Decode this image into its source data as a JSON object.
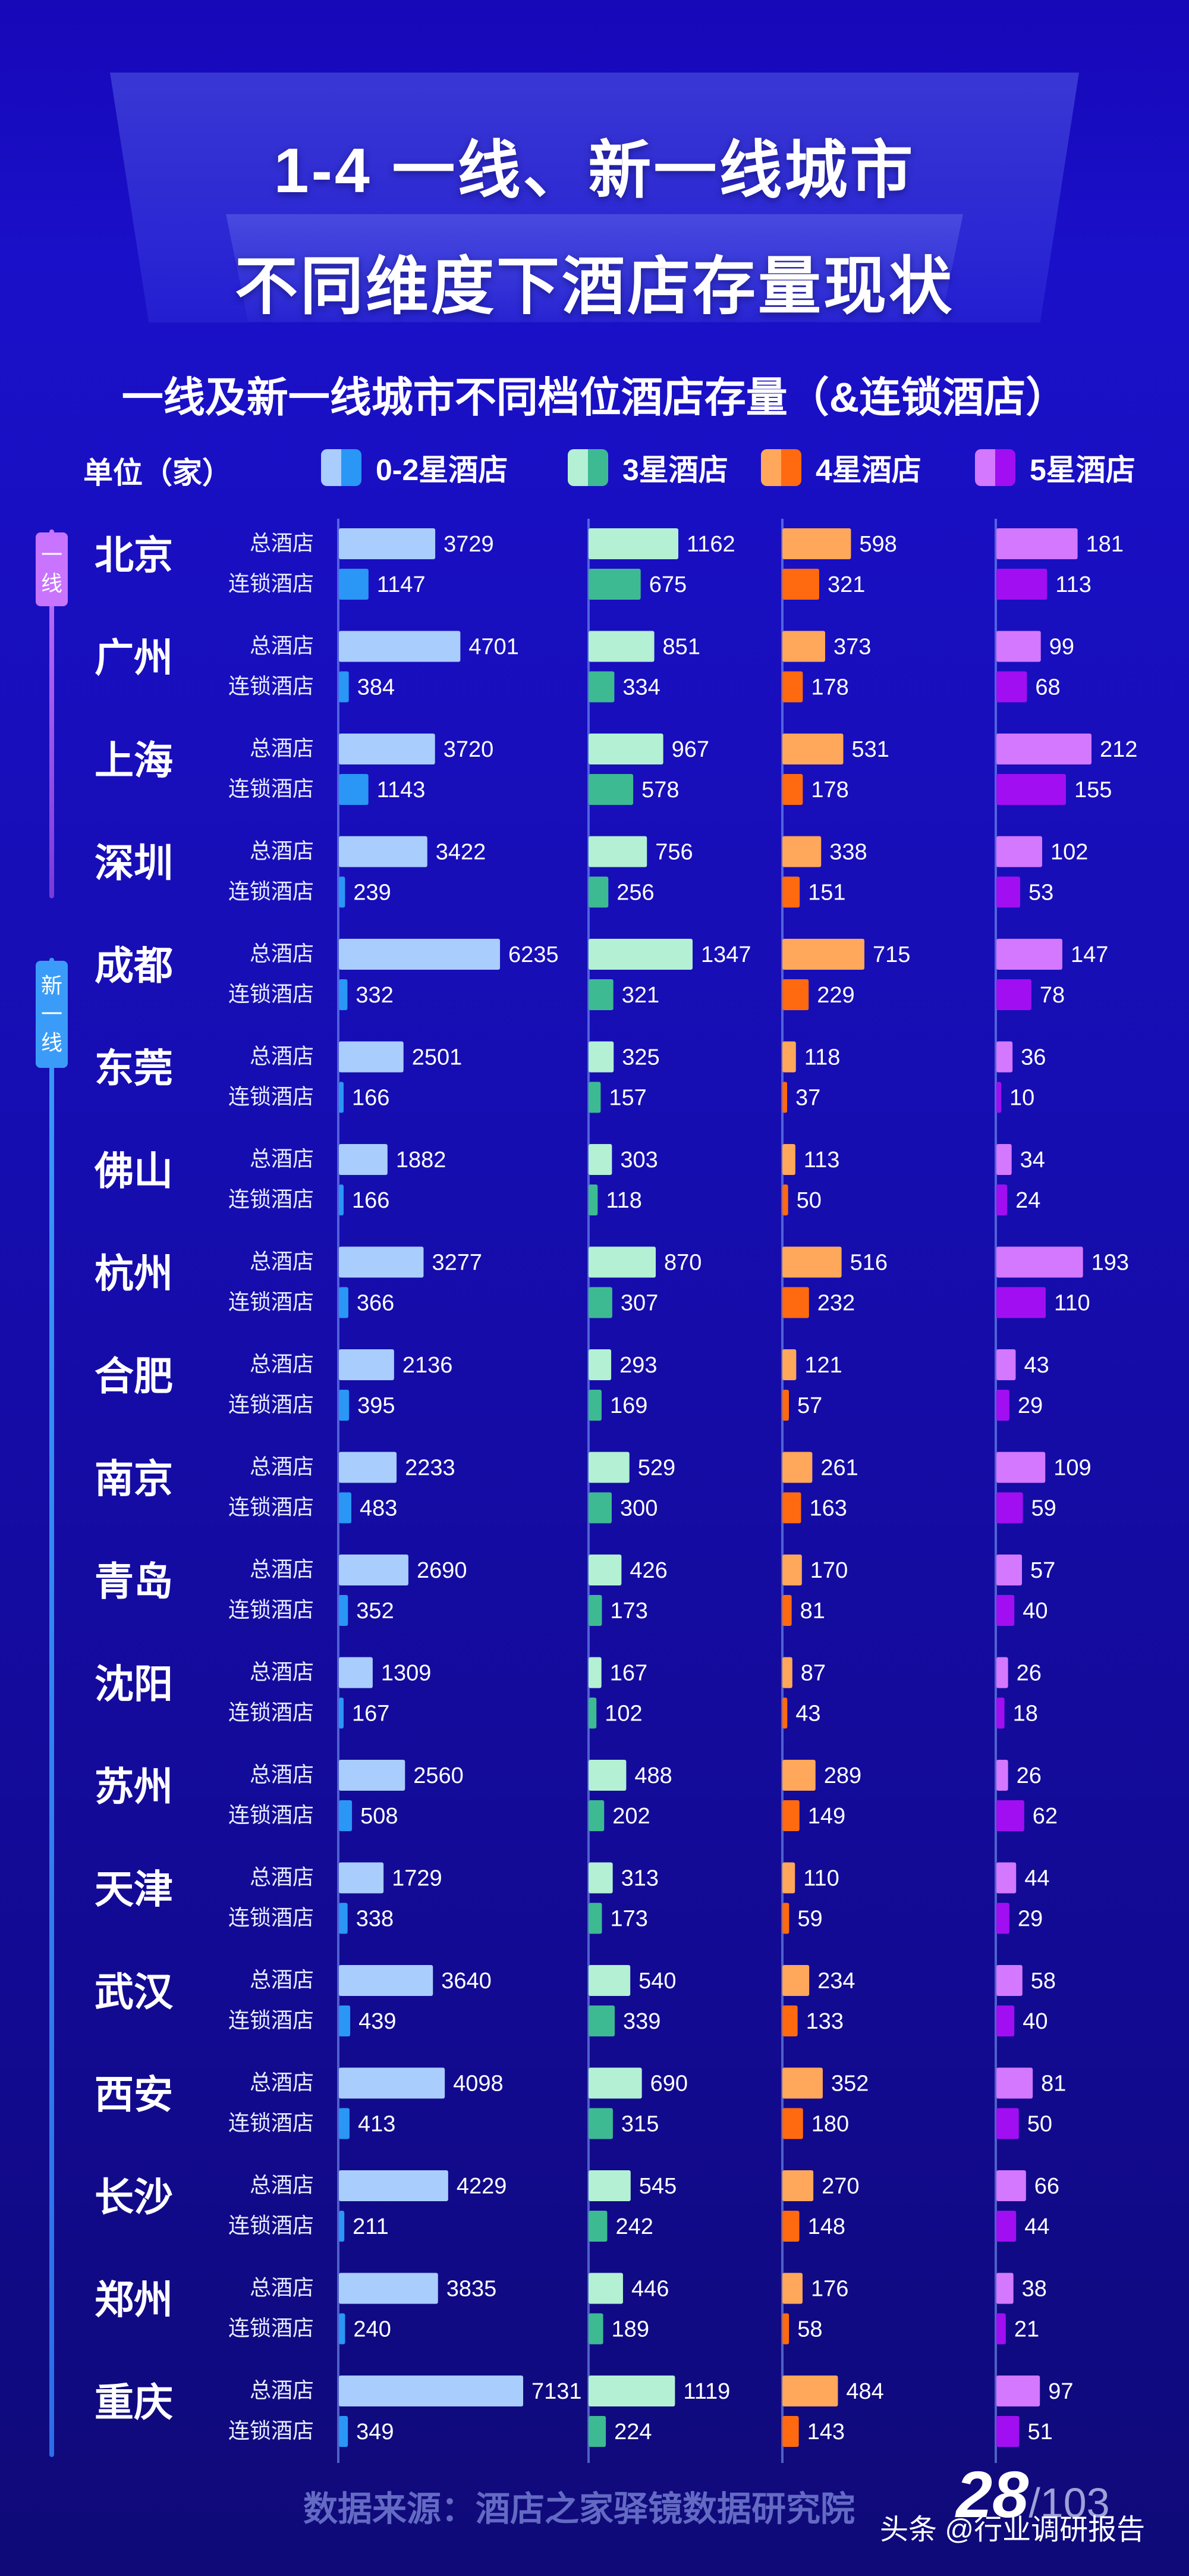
{
  "title": {
    "line1": "1-4 一线、新一线城市",
    "line2": "不同维度下酒店存量现状"
  },
  "chart_data": {
    "type": "bar",
    "title": "一线及新一线城市不同档位酒店存量（&连锁酒店）",
    "unit": "单位（家）",
    "row_labels": [
      "总酒店",
      "连锁酒店"
    ],
    "categories": [
      "北京",
      "广州",
      "上海",
      "深圳",
      "成都",
      "东莞",
      "佛山",
      "杭州",
      "合肥",
      "南京",
      "青岛",
      "沈阳",
      "苏州",
      "天津",
      "武汉",
      "西安",
      "长沙",
      "郑州",
      "重庆"
    ],
    "series": [
      {
        "name": "0-2星酒店",
        "colors": [
          "#a9cdfc",
          "#2a96f5"
        ],
        "scale_max": 7131,
        "total": [
          3729,
          4701,
          3720,
          3422,
          6235,
          2501,
          1882,
          3277,
          2136,
          2233,
          2690,
          1309,
          2560,
          1729,
          3640,
          4098,
          4229,
          3835,
          7131
        ],
        "chain": [
          1147,
          384,
          1143,
          239,
          332,
          166,
          166,
          366,
          395,
          483,
          352,
          167,
          508,
          338,
          439,
          413,
          211,
          240,
          349
        ]
      },
      {
        "name": "3星酒店",
        "colors": [
          "#b3f0d4",
          "#3dba92"
        ],
        "scale_max": 1347,
        "total": [
          1162,
          851,
          967,
          756,
          1347,
          325,
          303,
          870,
          293,
          529,
          426,
          167,
          488,
          313,
          540,
          690,
          545,
          446,
          1119
        ],
        "chain": [
          675,
          334,
          578,
          256,
          321,
          157,
          118,
          307,
          169,
          300,
          173,
          102,
          202,
          173,
          339,
          315,
          242,
          189,
          224
        ]
      },
      {
        "name": "4星酒店",
        "colors": [
          "#ffa75a",
          "#ff6a10"
        ],
        "scale_max": 715,
        "total": [
          598,
          373,
          531,
          338,
          715,
          118,
          113,
          516,
          121,
          261,
          170,
          87,
          289,
          110,
          234,
          352,
          270,
          176,
          484
        ],
        "chain": [
          321,
          178,
          178,
          151,
          229,
          37,
          50,
          232,
          57,
          163,
          81,
          43,
          149,
          59,
          133,
          180,
          148,
          58,
          143
        ]
      },
      {
        "name": "5星酒店",
        "colors": [
          "#d378ff",
          "#a10ef2"
        ],
        "scale_max": 212,
        "total": [
          181,
          99,
          212,
          102,
          147,
          36,
          34,
          193,
          43,
          109,
          57,
          26,
          26,
          44,
          58,
          81,
          66,
          38,
          97
        ],
        "chain": [
          113,
          68,
          155,
          53,
          78,
          10,
          24,
          110,
          29,
          59,
          40,
          18,
          62,
          29,
          40,
          50,
          44,
          21,
          51
        ]
      }
    ],
    "tiers": [
      {
        "label": "一线",
        "color": "#c874ff"
      },
      {
        "label": "新一线",
        "color": "#3a9cf8"
      }
    ]
  },
  "footer": {
    "source": "数据来源：酒店之家驿镜数据研究院",
    "page": "28",
    "total": "/103",
    "watermark": "头条 @行业调研报告"
  }
}
